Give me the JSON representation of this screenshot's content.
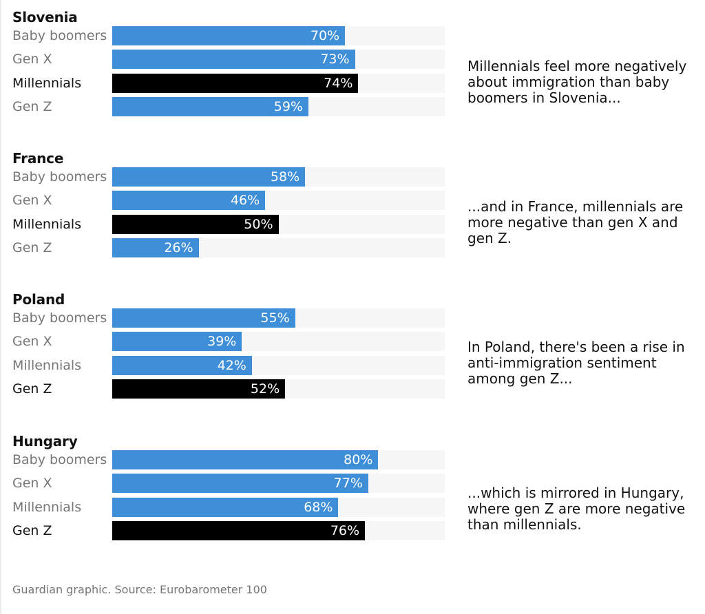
{
  "chart_data": {
    "type": "bar",
    "orientation": "horizontal",
    "xlim": [
      0,
      100
    ],
    "value_suffix": "%",
    "categories": [
      "Baby boomers",
      "Gen X",
      "Millennials",
      "Gen Z"
    ],
    "colors": {
      "bar": "#3f8fd8",
      "highlight": "#000000",
      "track": "#f6f6f6"
    },
    "panels": [
      {
        "title": "Slovenia",
        "values": [
          70,
          73,
          74,
          59
        ],
        "highlight": "Millennials",
        "note": "Millennials feel more negatively about immigration than baby boomers in Slovenia..."
      },
      {
        "title": "France",
        "values": [
          58,
          46,
          50,
          26
        ],
        "highlight": "Millennials",
        "note": "...and in France, millennials are more negative than gen X and gen Z."
      },
      {
        "title": "Poland",
        "values": [
          55,
          39,
          42,
          52
        ],
        "highlight": "Gen Z",
        "note": "In Poland, there's been a rise in anti-immigration sentiment among gen Z..."
      },
      {
        "title": "Hungary",
        "values": [
          80,
          77,
          68,
          76
        ],
        "highlight": "Gen Z",
        "note": "...which is mirrored in Hungary, where gen Z are more negative than millennials."
      }
    ],
    "source": "Guardian graphic. Source: Eurobarometer 100"
  }
}
